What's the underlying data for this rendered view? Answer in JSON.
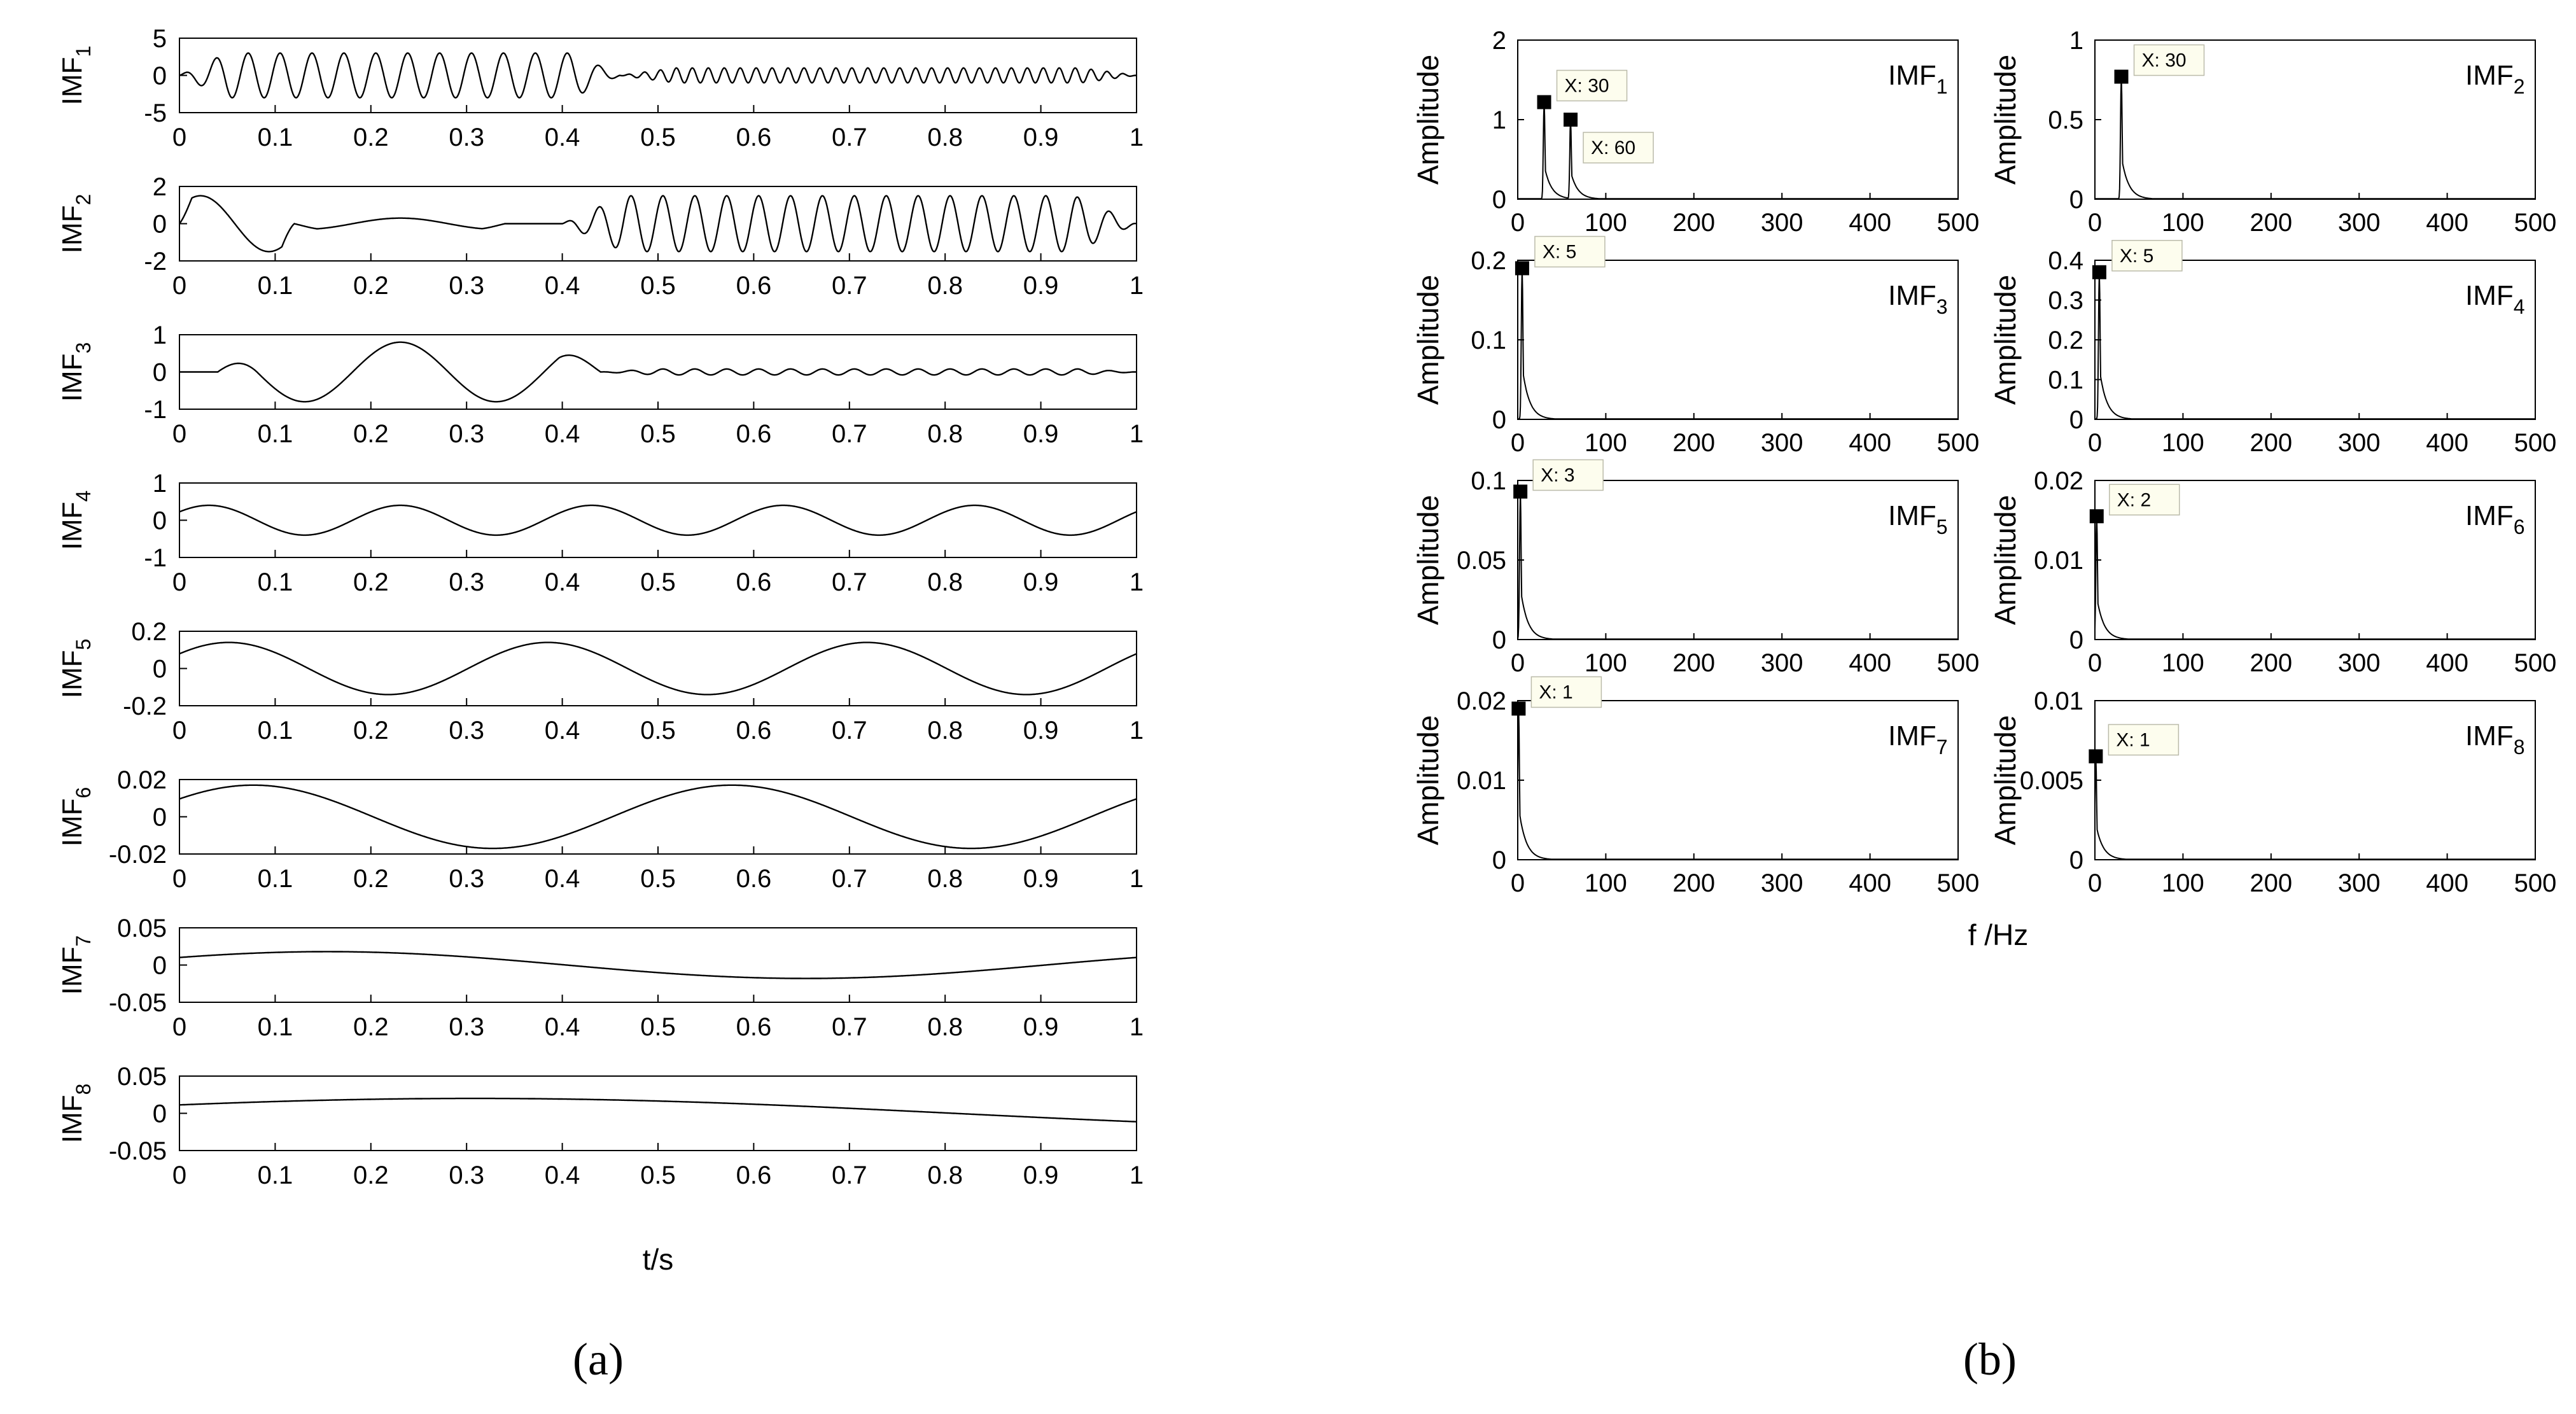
{
  "panel_labels": {
    "a": "(a)",
    "b": "(b)"
  },
  "chart_data": [
    {
      "type": "line",
      "panel": "(a)",
      "xlabel": "t/s",
      "xlim": [
        0,
        1
      ],
      "xticks": [
        0,
        0.1,
        0.2,
        0.3,
        0.4,
        0.5,
        0.6,
        0.7,
        0.8,
        0.9,
        1
      ],
      "xtick_labels": [
        "0",
        "0.1",
        "0.2",
        "0.3",
        "0.4",
        "0.5",
        "0.6",
        "0.7",
        "0.8",
        "0.9",
        "1"
      ],
      "grid": false,
      "subplots": [
        {
          "ylabel_base": "IMF",
          "ylabel_sub": "1",
          "ylim": [
            -5,
            5
          ],
          "yticks": [
            -5,
            0,
            5
          ],
          "ytick_labels": [
            "-5",
            "0",
            "5"
          ],
          "components": [
            {
              "amp": 3.0,
              "freq": 30,
              "t_from": 0,
              "t_to": 0.46
            },
            {
              "amp": 1.0,
              "freq": 60,
              "t_from": 0.46,
              "t_to": 1
            }
          ]
        },
        {
          "ylabel_base": "IMF",
          "ylabel_sub": "2",
          "ylim": [
            -2,
            2
          ],
          "yticks": [
            -2,
            0,
            2
          ],
          "ytick_labels": [
            "-2",
            "0",
            "2"
          ],
          "components": [
            {
              "amp": 1.5,
              "freq": 7,
              "t_from": 0,
              "t_to": 0.12
            },
            {
              "amp": 0.3,
              "freq": 5,
              "t_from": 0.12,
              "t_to": 0.34
            },
            {
              "amp": 1.5,
              "freq": 30,
              "t_from": 0.4,
              "t_to": 1
            }
          ]
        },
        {
          "ylabel_base": "IMF",
          "ylabel_sub": "3",
          "ylim": [
            -1,
            1
          ],
          "yticks": [
            -1,
            0,
            1
          ],
          "ytick_labels": [
            "-1",
            "0",
            "1"
          ],
          "components": [
            {
              "amp": 0.8,
              "freq": 5,
              "t_from": 0.04,
              "t_to": 0.44
            },
            {
              "amp": 0.08,
              "freq": 30,
              "t_from": 0.44,
              "t_to": 1
            }
          ]
        },
        {
          "ylabel_base": "IMF",
          "ylabel_sub": "4",
          "ylim": [
            -1,
            1
          ],
          "yticks": [
            -1,
            0,
            1
          ],
          "ytick_labels": [
            "-1",
            "0",
            "1"
          ],
          "components": [
            {
              "amp": 0.4,
              "freq": 5,
              "t_from": 0,
              "t_to": 1
            }
          ]
        },
        {
          "ylabel_base": "IMF",
          "ylabel_sub": "5",
          "ylim": [
            -0.2,
            0.2
          ],
          "yticks": [
            -0.2,
            0,
            0.2
          ],
          "ytick_labels": [
            "-0.2",
            "0",
            "0.2"
          ],
          "components": [
            {
              "amp": 0.14,
              "freq": 3,
              "t_from": 0,
              "t_to": 1
            }
          ]
        },
        {
          "ylabel_base": "IMF",
          "ylabel_sub": "6",
          "ylim": [
            -0.02,
            0.02
          ],
          "yticks": [
            -0.02,
            0,
            0.02
          ],
          "ytick_labels": [
            "-0.02",
            "0",
            "0.02"
          ],
          "components": [
            {
              "amp": 0.017,
              "freq": 2,
              "t_from": 0,
              "t_to": 1
            }
          ]
        },
        {
          "ylabel_base": "IMF",
          "ylabel_sub": "7",
          "ylim": [
            -0.05,
            0.05
          ],
          "yticks": [
            -0.05,
            0,
            0.05
          ],
          "ytick_labels": [
            "-0.05",
            "0",
            "0.05"
          ],
          "components": [
            {
              "amp": 0.018,
              "freq": 1,
              "t_from": 0,
              "t_to": 1
            }
          ]
        },
        {
          "ylabel_base": "IMF",
          "ylabel_sub": "8",
          "ylim": [
            -0.05,
            0.05
          ],
          "yticks": [
            -0.05,
            0,
            0.05
          ],
          "ytick_labels": [
            "-0.05",
            "0",
            "0.05"
          ],
          "components": [
            {
              "amp": 0.02,
              "freq": 0.5,
              "t_from": 0,
              "t_to": 1
            }
          ]
        }
      ]
    },
    {
      "type": "line",
      "panel": "(b)",
      "xlabel": "f /Hz",
      "xlim": [
        0,
        500
      ],
      "xticks": [
        0,
        100,
        200,
        300,
        400,
        500
      ],
      "xtick_labels": [
        "0",
        "100",
        "200",
        "300",
        "400",
        "500"
      ],
      "ylabel": "Amplitude",
      "grid": false,
      "subplots": [
        {
          "imf_base": "IMF",
          "imf_sub": "1",
          "ylim": [
            0,
            2
          ],
          "yticks": [
            0,
            1,
            2
          ],
          "ytick_labels": [
            "0",
            "1",
            "2"
          ],
          "peaks": [
            {
              "x": 30,
              "y": 1.22,
              "label": "X: 30"
            },
            {
              "x": 60,
              "y": 1.0,
              "label": "X: 60"
            }
          ]
        },
        {
          "imf_base": "IMF",
          "imf_sub": "2",
          "ylim": [
            0,
            1
          ],
          "yticks": [
            0,
            0.5,
            1
          ],
          "ytick_labels": [
            "0",
            "0.5",
            "1"
          ],
          "peaks": [
            {
              "x": 30,
              "y": 0.77,
              "label": "X: 30"
            }
          ]
        },
        {
          "imf_base": "IMF",
          "imf_sub": "3",
          "ylim": [
            0,
            0.2
          ],
          "yticks": [
            0,
            0.1,
            0.2
          ],
          "ytick_labels": [
            "0",
            "0.1",
            "0.2"
          ],
          "peaks": [
            {
              "x": 5,
              "y": 0.19,
              "label": "X: 5"
            }
          ]
        },
        {
          "imf_base": "IMF",
          "imf_sub": "4",
          "ylim": [
            0,
            0.4
          ],
          "yticks": [
            0,
            0.1,
            0.2,
            0.3,
            0.4
          ],
          "ytick_labels": [
            "0",
            "0.1",
            "0.2",
            "0.3",
            "0.4"
          ],
          "peaks": [
            {
              "x": 5,
              "y": 0.37,
              "label": "X: 5"
            }
          ]
        },
        {
          "imf_base": "IMF",
          "imf_sub": "5",
          "ylim": [
            0,
            0.1
          ],
          "yticks": [
            0,
            0.05,
            0.1
          ],
          "ytick_labels": [
            "0",
            "0.05",
            "0.1"
          ],
          "peaks": [
            {
              "x": 3,
              "y": 0.093,
              "label": "X: 3"
            }
          ]
        },
        {
          "imf_base": "IMF",
          "imf_sub": "6",
          "ylim": [
            0,
            0.02
          ],
          "yticks": [
            0,
            0.01,
            0.02
          ],
          "ytick_labels": [
            "0",
            "0.01",
            "0.02"
          ],
          "peaks": [
            {
              "x": 2,
              "y": 0.0155,
              "label": "X: 2"
            }
          ]
        },
        {
          "imf_base": "IMF",
          "imf_sub": "7",
          "ylim": [
            0,
            0.02
          ],
          "yticks": [
            0,
            0.01,
            0.02
          ],
          "ytick_labels": [
            "0",
            "0.01",
            "0.02"
          ],
          "peaks": [
            {
              "x": 1,
              "y": 0.019,
              "label": "X: 1"
            }
          ]
        },
        {
          "imf_base": "IMF",
          "imf_sub": "8",
          "ylim": [
            0,
            0.01
          ],
          "yticks": [
            0,
            0.005,
            0.01
          ],
          "ytick_labels": [
            "0",
            "0.005",
            "0.01"
          ],
          "peaks": [
            {
              "x": 1,
              "y": 0.0065,
              "label": "X: 1"
            }
          ]
        }
      ]
    }
  ]
}
